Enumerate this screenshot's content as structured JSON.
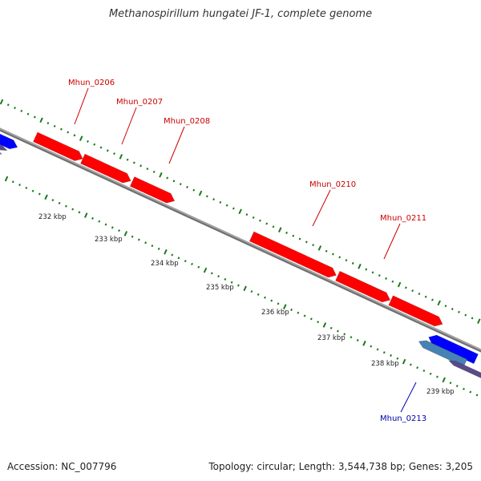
{
  "title": "Methanospirillum hungatei JF-1, complete genome",
  "footer": {
    "accession": "Accession: NC_007796",
    "topology": "Topology: circular; Length: 3,544,738 bp; Genes: 3,205"
  },
  "colors": {
    "forward_gene": "#ff0000",
    "reverse_gene": "#0000ff",
    "reverse_gene_alt": "#4682b4",
    "backbone": "#808080",
    "tick": "#1a7a1a",
    "forward_label": "#cc0000",
    "reverse_label": "#0000aa"
  },
  "scale": {
    "unit": "kbp",
    "labels": [
      "232 kbp",
      "233 kbp",
      "234 kbp",
      "235 kbp",
      "236 kbp",
      "237 kbp",
      "238 kbp",
      "239 kbp"
    ]
  },
  "genes": [
    {
      "label": "Mhun_0206",
      "strand": "+"
    },
    {
      "label": "Mhun_0207",
      "strand": "+"
    },
    {
      "label": "Mhun_0208",
      "strand": "+"
    },
    {
      "label": "Mhun_0210",
      "strand": "+"
    },
    {
      "label": "Mhun_0211",
      "strand": "+"
    },
    {
      "label": "Mhun_0213",
      "strand": "-"
    }
  ]
}
